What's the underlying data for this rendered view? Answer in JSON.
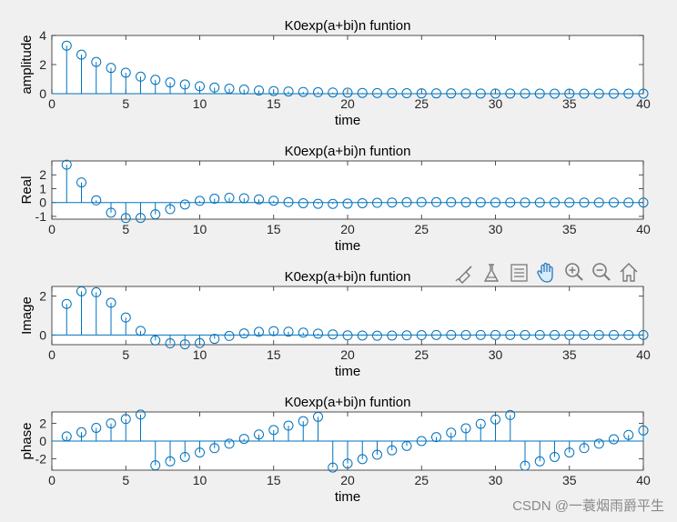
{
  "chart_data": [
    {
      "type": "stem",
      "title": "K0exp(a+bi)n funtion",
      "xlabel": "time",
      "ylabel": "amplitude",
      "xlim": [
        0,
        40
      ],
      "ylim": [
        0,
        4
      ],
      "xticks": [
        0,
        5,
        10,
        15,
        20,
        25,
        30,
        35,
        40
      ],
      "yticks": [
        0,
        2,
        4
      ],
      "x": [
        1,
        2,
        3,
        4,
        5,
        6,
        7,
        8,
        9,
        10,
        11,
        12,
        13,
        14,
        15,
        16,
        17,
        18,
        19,
        20,
        21,
        22,
        23,
        24,
        25,
        26,
        27,
        28,
        29,
        30,
        31,
        32,
        33,
        34,
        35,
        36,
        37,
        38,
        39,
        40
      ],
      "values": [
        3.3,
        2.68,
        2.18,
        1.77,
        1.44,
        1.17,
        0.95,
        0.77,
        0.63,
        0.51,
        0.42,
        0.34,
        0.28,
        0.22,
        0.18,
        0.15,
        0.12,
        0.1,
        0.08,
        0.07,
        0.05,
        0.04,
        0.04,
        0.03,
        0.02,
        0.02,
        0.02,
        0.01,
        0.01,
        0.01,
        0.01,
        0.01,
        0.0,
        0.0,
        0.0,
        0.0,
        0.0,
        0.0,
        0.0,
        0.0
      ]
    },
    {
      "type": "stem",
      "title": "K0exp(a+bi)n funtion",
      "xlabel": "time",
      "ylabel": "Real",
      "xlim": [
        0,
        40
      ],
      "ylim": [
        -1.2,
        3
      ],
      "xticks": [
        0,
        5,
        10,
        15,
        20,
        25,
        30,
        35,
        40
      ],
      "yticks": [
        -1,
        0,
        1,
        2
      ],
      "x": [
        1,
        2,
        3,
        4,
        5,
        6,
        7,
        8,
        9,
        10,
        11,
        12,
        13,
        14,
        15,
        16,
        17,
        18,
        19,
        20,
        21,
        22,
        23,
        24,
        25,
        26,
        27,
        28,
        29,
        30,
        31,
        32,
        33,
        34,
        35,
        36,
        37,
        38,
        39,
        40
      ],
      "values": [
        2.73,
        1.45,
        0.16,
        -0.73,
        -1.12,
        -1.11,
        -0.85,
        -0.48,
        -0.14,
        0.12,
        0.28,
        0.34,
        0.31,
        0.23,
        0.13,
        0.03,
        -0.05,
        -0.09,
        -0.1,
        -0.08,
        -0.05,
        -0.02,
        0.0,
        0.02,
        0.03,
        0.03,
        0.02,
        0.01,
        0.01,
        0.0,
        0.0,
        0.0,
        0.0,
        0.0,
        0.0,
        0.0,
        0.0,
        0.0,
        0.0,
        0.0
      ]
    },
    {
      "type": "stem",
      "title": "K0exp(a+bi)n funtion",
      "xlabel": "time",
      "ylabel": "Image",
      "xlim": [
        0,
        40
      ],
      "ylim": [
        -0.5,
        2.5
      ],
      "xticks": [
        0,
        5,
        10,
        15,
        20,
        25,
        30,
        35,
        40
      ],
      "yticks": [
        0,
        2
      ],
      "x": [
        1,
        2,
        3,
        4,
        5,
        6,
        7,
        8,
        9,
        10,
        11,
        12,
        13,
        14,
        15,
        16,
        17,
        18,
        19,
        20,
        21,
        22,
        23,
        24,
        25,
        26,
        27,
        28,
        29,
        30,
        31,
        32,
        33,
        34,
        35,
        36,
        37,
        38,
        39,
        40
      ],
      "values": [
        1.6,
        2.25,
        2.2,
        1.66,
        0.9,
        0.21,
        -0.28,
        -0.43,
        -0.48,
        -0.42,
        -0.2,
        -0.05,
        0.08,
        0.16,
        0.2,
        0.17,
        0.12,
        0.07,
        0.03,
        -0.02,
        -0.03,
        -0.04,
        -0.03,
        -0.02,
        -0.01,
        0.0,
        0.0,
        0.0,
        0.0,
        0.0,
        0.0,
        0.0,
        0.0,
        0.0,
        0.0,
        0.0,
        0.0,
        0.0,
        0.0,
        0.0
      ]
    },
    {
      "type": "stem",
      "title": "K0exp(a+bi)n funtion",
      "xlabel": "time",
      "ylabel": "phase",
      "xlim": [
        0,
        40
      ],
      "ylim": [
        -3.3,
        3.3
      ],
      "xticks": [
        0,
        5,
        10,
        15,
        20,
        25,
        30,
        35,
        40
      ],
      "yticks": [
        -2,
        0,
        2
      ],
      "x": [
        1,
        2,
        3,
        4,
        5,
        6,
        7,
        8,
        9,
        10,
        11,
        12,
        13,
        14,
        15,
        16,
        17,
        18,
        19,
        20,
        21,
        22,
        23,
        24,
        25,
        26,
        27,
        28,
        29,
        30,
        31,
        32,
        33,
        34,
        35,
        36,
        37,
        38,
        39,
        40
      ],
      "values": [
        0.53,
        1.0,
        1.5,
        2.0,
        2.5,
        3.0,
        -2.75,
        -2.3,
        -1.8,
        -1.3,
        -0.8,
        -0.3,
        0.25,
        0.75,
        1.25,
        1.75,
        2.25,
        2.75,
        -3.0,
        -2.55,
        -2.05,
        -1.55,
        -1.05,
        -0.55,
        0.0,
        0.45,
        0.95,
        1.45,
        1.95,
        2.45,
        2.95,
        -2.8,
        -2.3,
        -1.8,
        -1.3,
        -0.8,
        -0.3,
        0.2,
        0.7,
        1.2
      ]
    }
  ],
  "toolbar": {
    "icons": [
      "brush-icon",
      "data-cursor-icon",
      "legend-icon",
      "pan-icon",
      "zoom-in-icon",
      "zoom-out-icon",
      "home-icon"
    ]
  },
  "watermark": "CSDN @一蓑烟雨爵平生",
  "colors": {
    "stem": "#0072BD",
    "axes": "#262626",
    "background": "#f0f0f0",
    "plot_bg": "#ffffff"
  }
}
